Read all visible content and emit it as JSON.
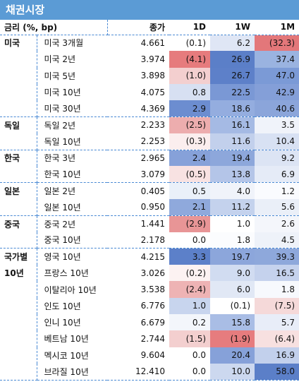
{
  "title": "채권시장",
  "headers": {
    "label": "금리 (%, bp)",
    "level": "종가",
    "d1": "1D",
    "w1": "1W",
    "m1": "1M"
  },
  "rows": [
    {
      "group": "미국",
      "name": "미국 3개월",
      "level": "4.661",
      "d1": "(0.1)",
      "w1": "6.2",
      "m1": "(32.3)",
      "c": [
        "#ffffff",
        "#dfe6f5",
        "#e3777a"
      ]
    },
    {
      "group": "",
      "name": "미국 2년",
      "level": "3.974",
      "d1": "(4.1)",
      "w1": "26.9",
      "m1": "37.4",
      "c": [
        "#e67b7d",
        "#5b7fc8",
        "#9ab3e0"
      ]
    },
    {
      "group": "",
      "name": "미국 5년",
      "level": "3.898",
      "d1": "(1.0)",
      "w1": "26.7",
      "m1": "47.0",
      "c": [
        "#f3cfcf",
        "#5d80c9",
        "#7b9ad6"
      ]
    },
    {
      "group": "",
      "name": "미국 10년",
      "level": "4.075",
      "d1": "0.8",
      "w1": "22.5",
      "m1": "42.9",
      "c": [
        "#d7e0f2",
        "#7a98d5",
        "#849fd8"
      ]
    },
    {
      "group": "",
      "name": "미국 30년",
      "level": "4.369",
      "d1": "2.9",
      "w1": "18.6",
      "m1": "40.6",
      "c": [
        "#6c8dd0",
        "#94addf",
        "#8ba5da"
      ]
    },
    {
      "group": "독일",
      "name": "독일 2년",
      "level": "2.233",
      "d1": "(2.5)",
      "w1": "16.1",
      "m1": "3.5",
      "c": [
        "#edadae",
        "#a5bae4",
        "#f0f3fa"
      ]
    },
    {
      "group": "",
      "name": "독일 10년",
      "level": "2.253",
      "d1": "(0.3)",
      "w1": "11.6",
      "m1": "10.4",
      "c": [
        "#fbeeee",
        "#c2d0ec",
        "#d8e1f3"
      ]
    },
    {
      "group": "한국",
      "name": "한국 3년",
      "level": "2.965",
      "d1": "2.4",
      "w1": "19.4",
      "m1": "9.2",
      "c": [
        "#86a1d9",
        "#8da7db",
        "#dce4f4"
      ]
    },
    {
      "group": "",
      "name": "한국 10년",
      "level": "3.079",
      "d1": "(0.5)",
      "w1": "13.8",
      "m1": "6.9",
      "c": [
        "#f8e2e2",
        "#b4c5e8",
        "#e5ebf7"
      ]
    },
    {
      "group": "일본",
      "name": "일본 2년",
      "level": "0.405",
      "d1": "0.5",
      "w1": "4.0",
      "m1": "1.2",
      "c": [
        "#eaf0f9",
        "#f0f3fa",
        "#fafbfe"
      ]
    },
    {
      "group": "",
      "name": "일본 10년",
      "level": "0.950",
      "d1": "2.1",
      "w1": "11.2",
      "m1": "5.6",
      "c": [
        "#8fa9dc",
        "#c4d2ed",
        "#eaeff8"
      ]
    },
    {
      "group": "중국",
      "name": "중국 2년",
      "level": "1.441",
      "d1": "(2.9)",
      "w1": "1.0",
      "m1": "2.6",
      "c": [
        "#e89596",
        "#ffffff",
        "#f4f6fb"
      ]
    },
    {
      "group": "",
      "name": "중국 10년",
      "level": "2.178",
      "d1": "0.0",
      "w1": "1.8",
      "m1": "4.5",
      "c": [
        "#ffffff",
        "#fbfcfe",
        "#eef2f9"
      ]
    },
    {
      "group": "국가별",
      "name": "영국 10년",
      "level": "4.215",
      "d1": "3.3",
      "w1": "19.7",
      "m1": "39.3",
      "c": [
        "#5c80c9",
        "#8ca6db",
        "#8ea8db"
      ]
    },
    {
      "group": "10년",
      "name": "프랑스 10년",
      "level": "3.026",
      "d1": "(0.2)",
      "w1": "9.0",
      "m1": "16.5",
      "c": [
        "#fcf2f2",
        "#d1dcf1",
        "#c5d2ed"
      ]
    },
    {
      "group": "",
      "name": "이탈리아 10년",
      "level": "3.538",
      "d1": "(2.4)",
      "w1": "6.0",
      "m1": "1.8",
      "c": [
        "#eeb3b4",
        "#e1e8f5",
        "#f7f9fd"
      ]
    },
    {
      "group": "",
      "name": "인도 10년",
      "level": "6.776",
      "d1": "1.0",
      "w1": "(0.1)",
      "m1": "(7.5)",
      "c": [
        "#c8d5ee",
        "#ffffff",
        "#f5d9d9"
      ]
    },
    {
      "group": "",
      "name": "인니 10년",
      "level": "6.679",
      "d1": "0.2",
      "w1": "15.8",
      "m1": "5.7",
      "c": [
        "#f3f6fb",
        "#a9bde5",
        "#e8edf8"
      ]
    },
    {
      "group": "",
      "name": "베트남 10년",
      "level": "2.744",
      "d1": "(1.5)",
      "w1": "(1.9)",
      "m1": "(6.4)",
      "c": [
        "#f3cfcf",
        "#e67c7e",
        "#f7e0e0"
      ]
    },
    {
      "group": "",
      "name": "멕시코 10년",
      "level": "9.604",
      "d1": "0.0",
      "w1": "20.4",
      "m1": "16.9",
      "c": [
        "#ffffff",
        "#86a1d9",
        "#c2d0ec"
      ]
    },
    {
      "group": "",
      "name": "브라질 10년",
      "level": "12.410",
      "d1": "0.0",
      "w1": "10.0",
      "m1": "58.0",
      "c": [
        "#ffffff",
        "#ccd8ef",
        "#5b7fc8"
      ]
    }
  ]
}
